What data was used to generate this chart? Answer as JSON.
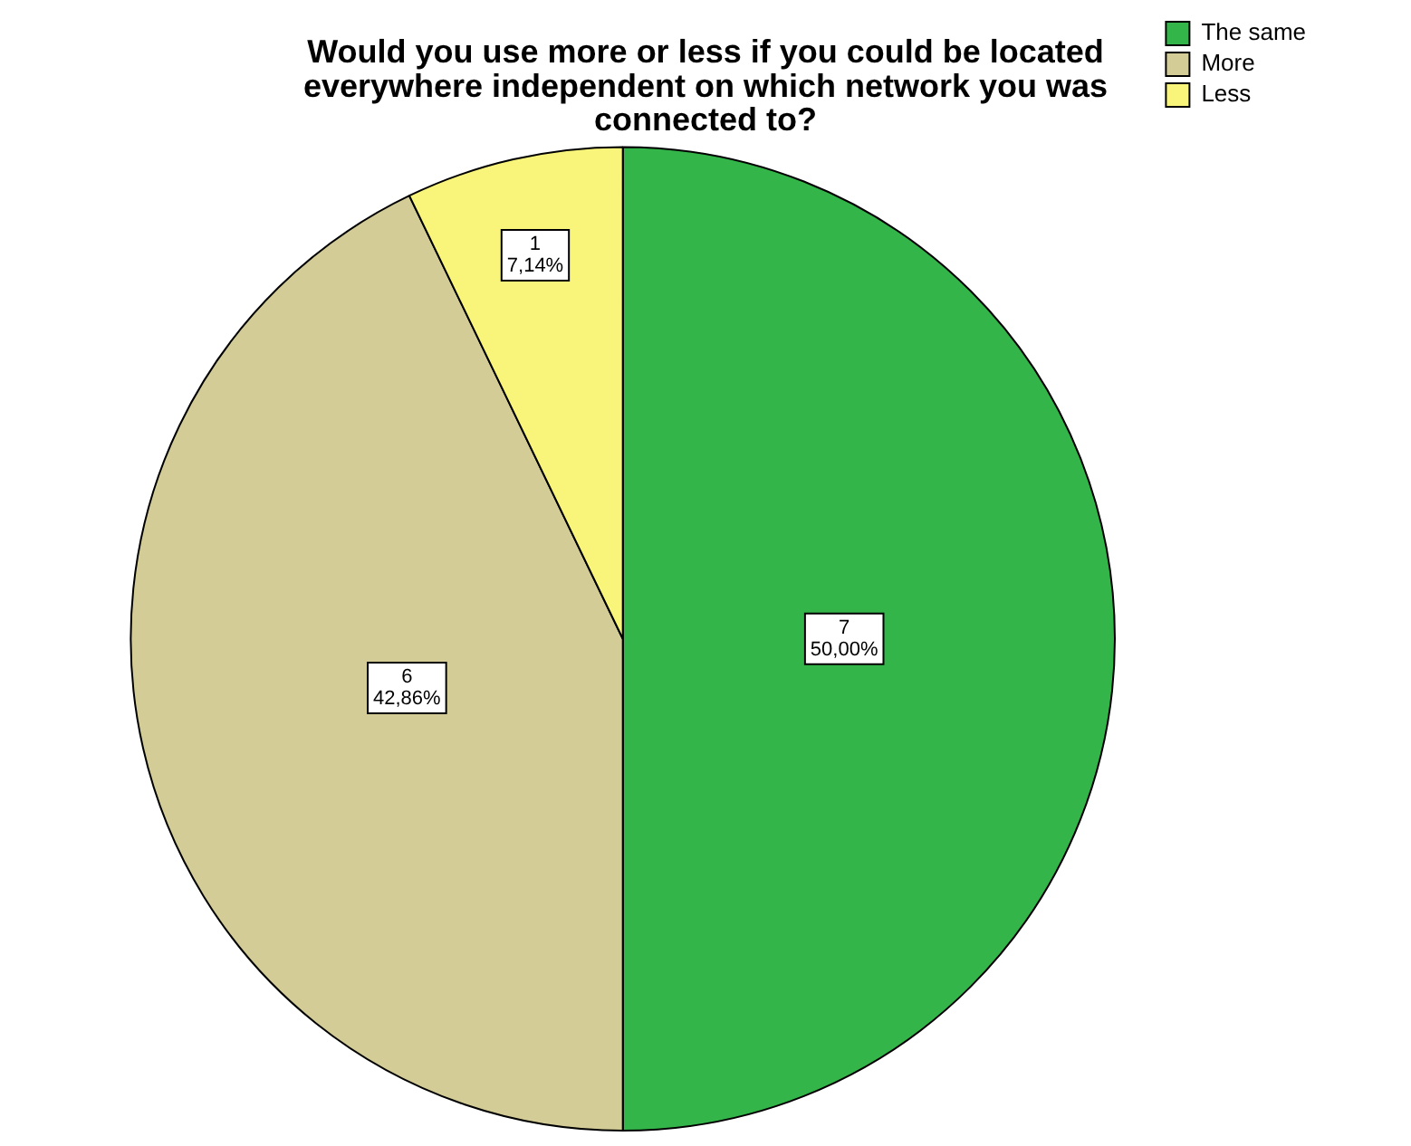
{
  "chart_data": {
    "type": "pie",
    "title": "Would you use more or less if you could be located everywhere independent on which network you was connected to?",
    "categories": [
      "The same",
      "More",
      "Less"
    ],
    "values": [
      7,
      6,
      1
    ],
    "colors": [
      "#33b54a",
      "#d4cc96",
      "#f9f57a"
    ],
    "value_labels": [
      "7\n50,00%",
      "6\n42,86%",
      "1\n7,14%"
    ],
    "legend": "top right"
  }
}
